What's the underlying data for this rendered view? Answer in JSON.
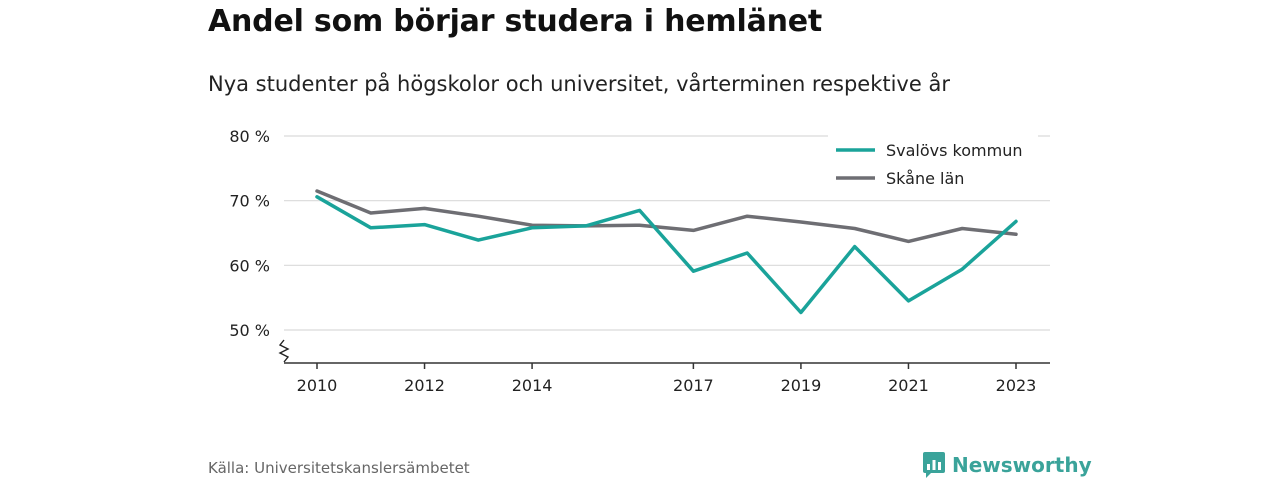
{
  "title": "Andel som börjar studera i hemlänet",
  "subtitle": "Nya studenter på högskolor och universitet, vårterminen respektive år",
  "source": "Källa: Universitetskanslersämbetet",
  "brand": "Newsworthy",
  "colors": {
    "svalov": "#1aa39a",
    "skane": "#6e6e73",
    "brand": "#3aa39a",
    "grid": "#d9d9d9"
  },
  "chart_data": {
    "type": "line",
    "x_ticks": [
      2010,
      2012,
      2014,
      2017,
      2019,
      2021,
      2023
    ],
    "y_ticks": [
      50,
      60,
      70,
      80
    ],
    "y_tick_labels": [
      "50 %",
      "60 %",
      "70 %",
      "80 %"
    ],
    "ylim": [
      45,
      80
    ],
    "xlim": [
      2010,
      2023
    ],
    "y_axis_break": true,
    "grid": true,
    "legend_position": "top-right",
    "x": [
      2010,
      2011,
      2012,
      2013,
      2014,
      2015,
      2016,
      2017,
      2018,
      2019,
      2020,
      2021,
      2022,
      2023
    ],
    "series": [
      {
        "name": "Svalövs kommun",
        "color": "#1aa39a",
        "values": [
          70.6,
          65.8,
          66.3,
          63.9,
          65.8,
          66.1,
          68.5,
          59.1,
          61.9,
          52.7,
          62.9,
          54.5,
          59.4,
          66.8
        ]
      },
      {
        "name": "Skåne län",
        "color": "#6e6e73",
        "values": [
          71.5,
          68.1,
          68.8,
          67.6,
          66.2,
          66.1,
          66.2,
          65.4,
          67.6,
          66.7,
          65.7,
          63.7,
          65.7,
          64.8
        ]
      }
    ]
  }
}
